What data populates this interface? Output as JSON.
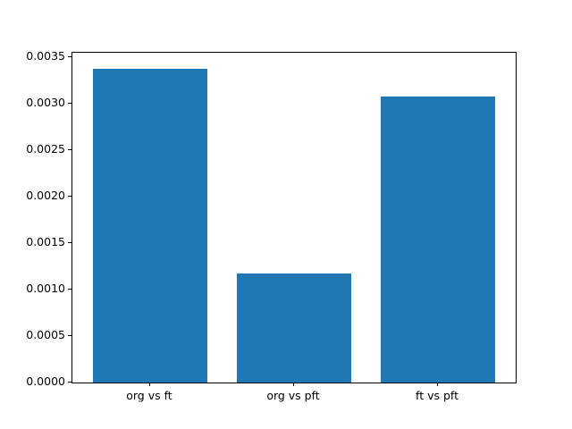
{
  "chart_data": {
    "type": "bar",
    "title": "",
    "xlabel": "",
    "ylabel": "",
    "categories": [
      "org vs ft",
      "org vs pft",
      "ft vs pft"
    ],
    "values": [
      0.00338,
      0.00117,
      0.00308
    ],
    "ylim": [
      0,
      0.003549
    ],
    "yticks": [
      "0.0000",
      "0.0005",
      "0.0010",
      "0.0015",
      "0.0020",
      "0.0025",
      "0.0030",
      "0.0035"
    ],
    "ytick_values": [
      0.0,
      0.0005,
      0.001,
      0.0015,
      0.002,
      0.0025,
      0.003,
      0.0035
    ],
    "bar_color": "#1f77b4",
    "bar_width_fraction": 0.8,
    "grid": false,
    "legend": null,
    "frame_color": "#000000",
    "background_color": "#ffffff"
  }
}
